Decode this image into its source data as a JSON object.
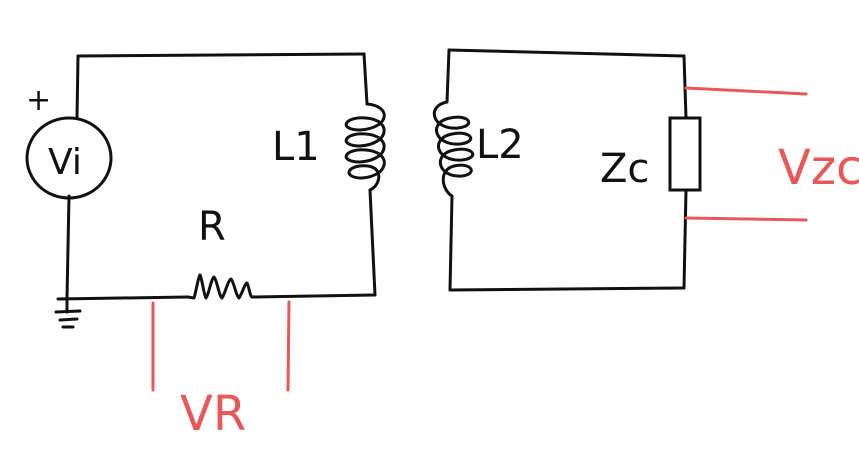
{
  "colors": {
    "ink": "#111111",
    "annotation": "#e8585a",
    "background": "#ffffff"
  },
  "labels": {
    "source_plus": "+",
    "source": "Vi",
    "inductor1": "L1",
    "inductor2": "L2",
    "resistor": "R",
    "impedance": "Zc",
    "v_resistor": "VR",
    "v_impedance": "Vzc"
  }
}
